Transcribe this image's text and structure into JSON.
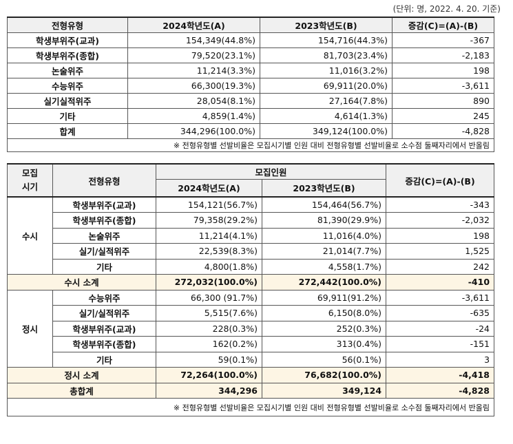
{
  "unit_note": "(단위: 명, 2022. 4. 20. 기준)",
  "table1": {
    "headers": [
      "전형유형",
      "2024학년도(A)",
      "2023학년도(B)",
      "증감(C)=(A)-(B)"
    ],
    "rows": [
      [
        "학생부위주(교과)",
        "154,349(44.8%)",
        "154,716(44.3%)",
        "-367"
      ],
      [
        "학생부위주(종합)",
        "79,520(23.1%)",
        "81,703(23.4%)",
        "-2,183"
      ],
      [
        "논술위주",
        "11,214(3.3%)",
        "11,016(3.2%)",
        "198"
      ],
      [
        "수능위주",
        "66,300(19.3%)",
        "69,911(20.0%)",
        "-3,611"
      ],
      [
        "실기실적위주",
        "28,054(8.1%)",
        "27,164(7.8%)",
        "890"
      ],
      [
        "기타",
        "4,859(1.4%)",
        "4,614(1.3%)",
        "245"
      ],
      [
        "합계",
        "344,296(100.0%)",
        "349,124(100.0%)",
        "-4,828"
      ]
    ],
    "note": "※ 전형유형별 선발비율은 모집시기별 인원 대비 전형유형별 선발비율로 소수점 둘째자리에서 반올림"
  },
  "table2": {
    "h_period": "모집\n시기",
    "h_type": "전형유형",
    "h_recruit": "모집인원",
    "h_2024": "2024학년도(A)",
    "h_2023": "2023학년도(B)",
    "h_diff": "증감(C)=(A)-(B)",
    "susi": {
      "label": "수시",
      "rows": [
        [
          "학생부위주(교과)",
          "154,121(56.7%)",
          "154,464(56.7%)",
          "-343"
        ],
        [
          "학생부위주(종합)",
          "79,358(29.2%)",
          "81,390(29.9%)",
          "-2,032"
        ],
        [
          "논술위주",
          "11,214(4.1%)",
          "11,016(4.0%)",
          "198"
        ],
        [
          "실기/실적위주",
          "22,539(8.3%)",
          "21,014(7.7%)",
          "1,525"
        ],
        [
          "기타",
          "4,800(1.8%)",
          "4,558(1.7%)",
          "242"
        ]
      ],
      "subtotal": [
        "수시 소계",
        "272,032(100.0%)",
        "272,442(100.0%)",
        "-410"
      ]
    },
    "jeongsi": {
      "label": "정시",
      "rows": [
        [
          "수능위주",
          "66,300 (91.7%)",
          "69,911(91.2%)",
          "-3,611"
        ],
        [
          "실기/실적위주",
          "5,515(7.6%)",
          "6,150(8.0%)",
          "-635"
        ],
        [
          "학생부위주(교과)",
          "228(0.3%)",
          "252(0.3%)",
          "-24"
        ],
        [
          "학생부위주(종합)",
          "162(0.2%)",
          "313(0.4%)",
          "-151"
        ],
        [
          "기타",
          "59(0.1%)",
          "56(0.1%)",
          "3"
        ]
      ],
      "subtotal": [
        "정시 소계",
        "72,264(100.0%)",
        "76,682(100.0%)",
        "-4,418"
      ]
    },
    "grand_total": [
      "총합계",
      "344,296",
      "349,124",
      "-4,828"
    ],
    "note": "※ 전형유형별 선발비율은 모집시기별 인원 대비 전형유형별 선발비율로 소수점 둘째자리에서 반올림"
  }
}
